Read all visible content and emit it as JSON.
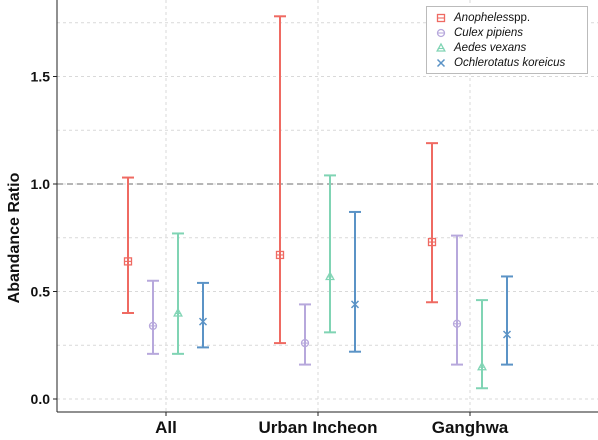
{
  "chart_data": {
    "type": "scatter",
    "subtype": "point-with-error-bars",
    "ylabel": "Abandance Ratio",
    "xlabel": "",
    "categories": [
      "All",
      "Urban Incheon",
      "Ganghwa"
    ],
    "ylim": [
      -0.04,
      1.86
    ],
    "yticks": [
      "0.0",
      "0.5",
      "1.0",
      "1.5"
    ],
    "yticks_values": [
      0.0,
      0.5,
      1.0,
      1.5
    ],
    "reference_line": 1.0,
    "grid": true,
    "legend_position": "top-right",
    "series": [
      {
        "name_italic": "Anopheles",
        "name_rest": " spp.",
        "color": "#ef6a62",
        "marker": "square-cross",
        "estimate": [
          0.64,
          0.67,
          0.73
        ],
        "lower": [
          0.4,
          0.26,
          0.45
        ],
        "upper": [
          1.03,
          1.78,
          1.19
        ]
      },
      {
        "name_italic": "Culex pipiens",
        "name_rest": "",
        "color": "#b7a8dc",
        "marker": "circle-cross",
        "estimate": [
          0.34,
          0.26,
          0.35
        ],
        "lower": [
          0.21,
          0.16,
          0.16
        ],
        "upper": [
          0.55,
          0.44,
          0.76
        ]
      },
      {
        "name_italic": "Aedes vexans",
        "name_rest": "",
        "color": "#80d4b4",
        "marker": "triangle",
        "estimate": [
          0.4,
          0.57,
          0.15
        ],
        "lower": [
          0.21,
          0.31,
          0.05
        ],
        "upper": [
          0.77,
          1.04,
          0.46
        ]
      },
      {
        "name_italic": "Ochlerotatus koreicus",
        "name_rest": "",
        "color": "#5b93c6",
        "marker": "x",
        "estimate": [
          0.36,
          0.44,
          0.3
        ],
        "lower": [
          0.24,
          0.22,
          0.16
        ],
        "upper": [
          0.54,
          0.87,
          0.57
        ]
      }
    ]
  }
}
